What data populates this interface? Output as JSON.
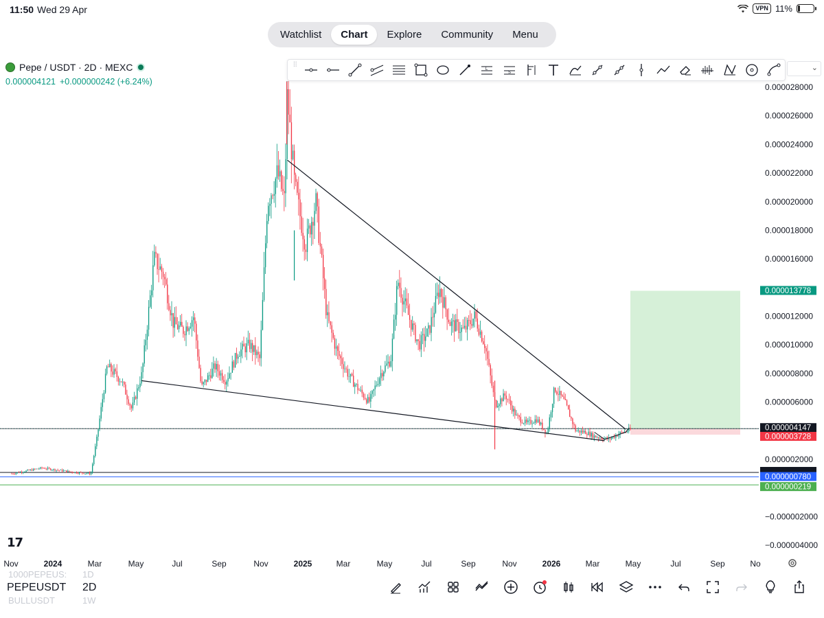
{
  "status_bar": {
    "time": "11:50",
    "date": "Wed 29 Apr",
    "vpn": "VPN",
    "battery": "11%"
  },
  "top_nav": {
    "tabs": [
      "Watchlist",
      "Chart",
      "Explore",
      "Community",
      "Menu"
    ],
    "active": "Chart"
  },
  "symbol": {
    "name": "Pepe / USDT · 2D · MEXC",
    "price": "0.000004121",
    "change": "+0.000000242 (+6.24%)"
  },
  "drawing_tools": [
    "cursor-line-icon",
    "horizontal-ray-icon",
    "trend-line-icon",
    "parallel-channel-icon",
    "fib-retracement-icon",
    "rectangle-icon",
    "ellipse-icon",
    "brush-icon",
    "long-position-icon",
    "short-position-icon",
    "anchored-vwap-icon",
    "text-icon",
    "path-icon",
    "arrow-icon",
    "ray-icon",
    "vertical-line-icon",
    "polyline-icon",
    "eraser-icon",
    "volume-profile-icon",
    "xabcd-pattern-icon",
    "circle-icon",
    "curve-icon"
  ],
  "price_axis": {
    "ticks": [
      "0.000028000",
      "0.000026000",
      "0.000024000",
      "0.000022000",
      "0.000020000",
      "0.000018000",
      "0.000016000",
      "0.000012000",
      "0.000010000",
      "0.000008000",
      "0.000006000",
      "0.000002000",
      "−0.000002000",
      "−0.000004000"
    ],
    "tags": [
      {
        "text": "0.000013778",
        "bg": "#089981"
      },
      {
        "text": "0.000004147",
        "bg": "#131722"
      },
      {
        "text": "0.000003728",
        "bg": "#f23645"
      },
      {
        "text": "0.000000780",
        "bg": "#2962ff"
      },
      {
        "text": "0.000000219",
        "bg": "#4caf50"
      }
    ]
  },
  "time_axis": [
    "Nov",
    "2024",
    "Mar",
    "May",
    "Jul",
    "Sep",
    "Nov",
    "2025",
    "Mar",
    "May",
    "Jul",
    "Sep",
    "Nov",
    "2026",
    "Mar",
    "May",
    "Jul",
    "Sep",
    "No"
  ],
  "bottom_bar": {
    "symbol": "PEPEUSDT",
    "interval": "2D",
    "ghost_above_symbol": "1000PEPEUS:",
    "ghost_above_interval": "1D",
    "ghost_below_symbol": "BULLUSDT",
    "ghost_below_interval": "1W"
  },
  "colors": {
    "up": "#089981",
    "down": "#f23645",
    "target_zone": "#d6f0d8",
    "stop_zone": "#fbd9dc"
  },
  "chart_data": {
    "type": "candlestick",
    "ylim": [
      -5e-06,
      2.85e-05
    ],
    "trendlines": [
      {
        "name": "descending-resistance",
        "from": [
          "2024-12-10",
          2.29e-05
        ],
        "to": [
          "2026-04-20",
          4.1e-06
        ]
      },
      {
        "name": "descending-support",
        "from": [
          "2024-05-10",
          7.5e-06
        ],
        "to": [
          "2026-03-20",
          3.3e-06
        ]
      }
    ],
    "long_position": {
      "entry": 4.147e-06,
      "target": 1.3778e-05,
      "stop": 3.728e-06
    },
    "horizontal_levels": [
      7.8e-07,
      2.19e-07
    ],
    "path": [
      [
        "2023-11-01",
        1e-06
      ],
      [
        "2023-12-15",
        1.4e-06
      ],
      [
        "2024-02-01",
        1.1e-06
      ],
      [
        "2024-02-25",
        1e-06
      ],
      [
        "2024-03-05",
        3.5e-06
      ],
      [
        "2024-03-20",
        8.5e-06
      ],
      [
        "2024-04-10",
        7.5e-06
      ],
      [
        "2024-04-25",
        5.5e-06
      ],
      [
        "2024-05-10",
        8e-06
      ],
      [
        "2024-05-28",
        1.6e-05
      ],
      [
        "2024-06-10",
        1.5e-05
      ],
      [
        "2024-06-25",
        1.15e-05
      ],
      [
        "2024-07-10",
        1.1e-05
      ],
      [
        "2024-07-25",
        1.2e-05
      ],
      [
        "2024-08-05",
        7e-06
      ],
      [
        "2024-08-25",
        8.5e-06
      ],
      [
        "2024-09-10",
        7.5e-06
      ],
      [
        "2024-09-28",
        9.5e-06
      ],
      [
        "2024-10-15",
        1e-05
      ],
      [
        "2024-10-30",
        9e-06
      ],
      [
        "2024-11-10",
        2e-05
      ],
      [
        "2024-11-25",
        2.2e-05
      ],
      [
        "2024-12-05",
        2e-05
      ],
      [
        "2024-12-09",
        2.75e-05
      ],
      [
        "2024-12-20",
        2.1e-05
      ],
      [
        "2025-01-05",
        1.7e-05
      ],
      [
        "2025-01-20",
        2e-05
      ],
      [
        "2025-02-05",
        1.2e-05
      ],
      [
        "2025-02-20",
        9.5e-06
      ],
      [
        "2025-03-10",
        7.8e-06
      ],
      [
        "2025-03-25",
        6.8e-06
      ],
      [
        "2025-04-08",
        6e-06
      ],
      [
        "2025-04-25",
        8e-06
      ],
      [
        "2025-05-10",
        9e-06
      ],
      [
        "2025-05-20",
        1.45e-05
      ],
      [
        "2025-06-05",
        1.2e-05
      ],
      [
        "2025-06-20",
        1e-05
      ],
      [
        "2025-07-05",
        1.1e-05
      ],
      [
        "2025-07-20",
        1.4e-05
      ],
      [
        "2025-08-05",
        1.15e-05
      ],
      [
        "2025-08-25",
        1.1e-05
      ],
      [
        "2025-09-10",
        1.2e-05
      ],
      [
        "2025-09-25",
        1e-05
      ],
      [
        "2025-10-10",
        5.8e-06
      ],
      [
        "2025-10-25",
        6.5e-06
      ],
      [
        "2025-11-10",
        5e-06
      ],
      [
        "2025-11-25",
        4.5e-06
      ],
      [
        "2025-12-10",
        4.8e-06
      ],
      [
        "2025-12-25",
        3.8e-06
      ],
      [
        "2026-01-05",
        7e-06
      ],
      [
        "2026-01-20",
        6e-06
      ],
      [
        "2026-02-05",
        4e-06
      ],
      [
        "2026-02-20",
        3.9e-06
      ],
      [
        "2026-03-05",
        3.6e-06
      ],
      [
        "2026-03-25",
        3.4e-06
      ],
      [
        "2026-04-10",
        3.8e-06
      ],
      [
        "2026-04-28",
        4.1e-06
      ]
    ]
  }
}
